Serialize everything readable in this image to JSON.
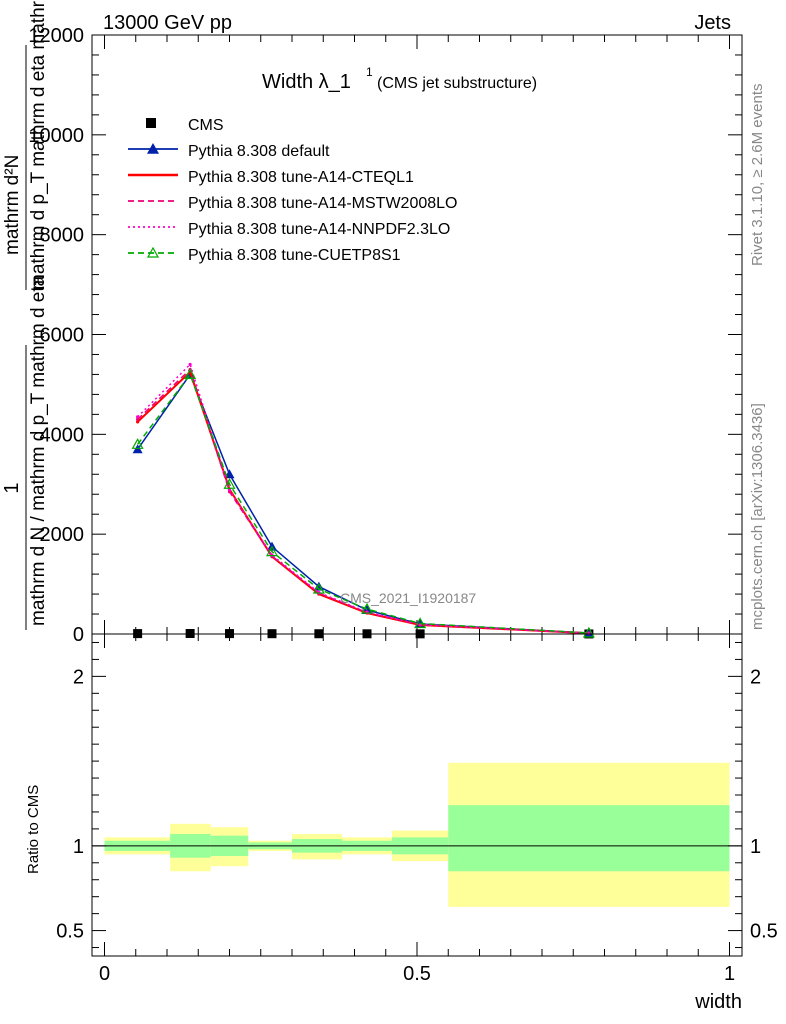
{
  "header": {
    "left": "13000 GeV pp",
    "right": "Jets"
  },
  "side_labels": {
    "rivet": "Rivet 3.1.10, ≥ 2.6M events",
    "mcplots": "mcplots.cern.ch [arXiv:1306.3436]"
  },
  "watermark": "CMS_2021_I1920187",
  "chart_data": {
    "type": "line",
    "title": "Width λ_1",
    "title_sup": "1",
    "title_note": "(CMS jet substructure)",
    "xlabel": "width",
    "ylabel_main": {
      "numer": "1",
      "denom": "mathrm d N / mathrm d p_T mathrm d eta",
      "numer2": "mathrm d²N",
      "denom2": "mathrm d p_T mathrm d eta mathrm d lambda"
    },
    "ylabel_ratio": "Ratio to CMS",
    "xlim": [
      -0.02,
      1.02
    ],
    "ylim": [
      0,
      12000
    ],
    "ratio_ylim": [
      0.35,
      2.25
    ],
    "x_ticks": [
      "0",
      "0.5",
      "1"
    ],
    "x_tick_values": [
      0,
      0.5,
      1
    ],
    "y_ticks": [
      "0",
      "2000",
      "4000",
      "6000",
      "8000",
      "10000",
      "12000"
    ],
    "y_tick_values": [
      0,
      2000,
      4000,
      6000,
      8000,
      10000,
      12000
    ],
    "ratio_ticks": [
      "0.5",
      "1",
      "2"
    ],
    "ratio_tick_values": [
      0.5,
      1,
      2
    ],
    "bin_edges": [
      0,
      0.105,
      0.17,
      0.23,
      0.3,
      0.38,
      0.46,
      0.55,
      1.0
    ],
    "x": [
      0.053,
      0.137,
      0.2,
      0.268,
      0.343,
      0.42,
      0.505,
      0.775
    ],
    "series": [
      {
        "name": "CMS",
        "values": [
          8,
          10,
          8,
          6,
          5,
          4,
          3,
          1
        ],
        "color": "#000000",
        "style": "data"
      },
      {
        "name": "Pythia 8.308 default",
        "values": [
          3700,
          5200,
          3200,
          1750,
          950,
          480,
          200,
          20
        ],
        "color": "#0022aa",
        "style": "solid-tri"
      },
      {
        "name": "Pythia 8.308 tune-A14-CTEQL1",
        "values": [
          4250,
          5250,
          2900,
          1550,
          800,
          420,
          180,
          15
        ],
        "color": "#ff0000",
        "style": "solid"
      },
      {
        "name": "Pythia 8.308 tune-A14-MSTW2008LO",
        "values": [
          4300,
          5300,
          2850,
          1560,
          820,
          430,
          185,
          15
        ],
        "color": "#ee0077",
        "style": "dashed"
      },
      {
        "name": "Pythia 8.308 tune-A14-NNPDF2.3LO",
        "values": [
          4350,
          5400,
          2880,
          1580,
          830,
          440,
          190,
          15
        ],
        "color": "#ff00cc",
        "style": "dotted"
      },
      {
        "name": "Pythia 8.308 tune-CUETP8S1",
        "values": [
          3800,
          5200,
          3000,
          1650,
          900,
          500,
          210,
          20
        ],
        "color": "#00aa00",
        "style": "dashed-tri"
      }
    ],
    "ratio_bands": {
      "inner_color": "#99ff99",
      "outer_color": "#ffff99",
      "inner_low": [
        0.97,
        0.93,
        0.94,
        0.98,
        0.96,
        0.97,
        0.95,
        0.85
      ],
      "inner_high": [
        1.03,
        1.07,
        1.06,
        1.02,
        1.04,
        1.03,
        1.05,
        1.24
      ],
      "outer_low": [
        0.95,
        0.85,
        0.88,
        0.97,
        0.92,
        0.95,
        0.91,
        0.64
      ],
      "outer_high": [
        1.05,
        1.13,
        1.11,
        1.03,
        1.07,
        1.05,
        1.09,
        1.49
      ]
    }
  }
}
